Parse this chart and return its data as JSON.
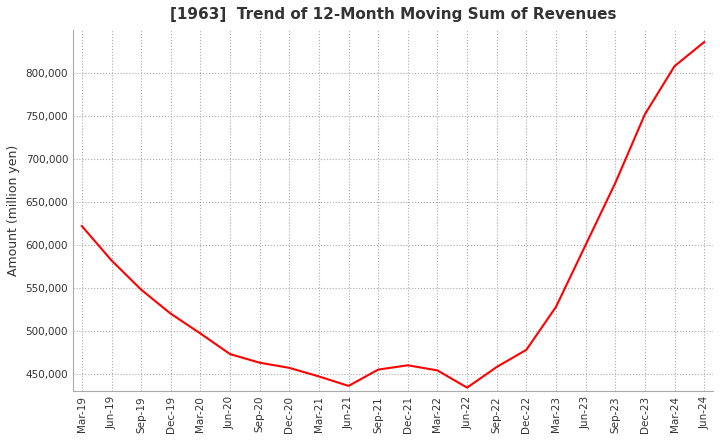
{
  "title": "[1963]  Trend of 12-Month Moving Sum of Revenues",
  "ylabel": "Amount (million yen)",
  "line_color": "#ff0000",
  "background_color": "#ffffff",
  "grid_color": "#aaaaaa",
  "ylim": [
    430000,
    850000
  ],
  "yticks": [
    450000,
    500000,
    550000,
    600000,
    650000,
    700000,
    750000,
    800000
  ],
  "x_labels": [
    "Mar-19",
    "Jun-19",
    "Sep-19",
    "Dec-19",
    "Mar-20",
    "Jun-20",
    "Sep-20",
    "Dec-20",
    "Mar-21",
    "Jun-21",
    "Sep-21",
    "Dec-21",
    "Mar-22",
    "Jun-22",
    "Sep-22",
    "Dec-22",
    "Mar-23",
    "Jun-23",
    "Sep-23",
    "Dec-23",
    "Mar-24",
    "Jun-24"
  ],
  "values": [
    622000,
    582000,
    548000,
    520000,
    497000,
    473000,
    463000,
    457000,
    447000,
    436000,
    455000,
    460000,
    454000,
    434000,
    458000,
    478000,
    528000,
    600000,
    672000,
    752000,
    808000,
    836000
  ]
}
